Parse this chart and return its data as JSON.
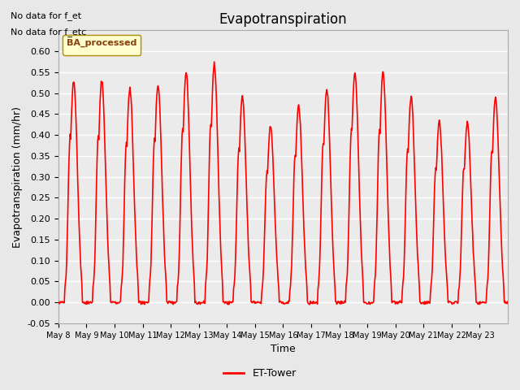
{
  "title": "Evapotranspiration",
  "ylabel": "Evapotranspiration (mm/hr)",
  "xlabel": "Time",
  "ylim": [
    -0.05,
    0.65
  ],
  "yticks": [
    -0.05,
    0.0,
    0.05,
    0.1,
    0.15,
    0.2,
    0.25,
    0.3,
    0.35,
    0.4,
    0.45,
    0.5,
    0.55,
    0.6
  ],
  "line_color": "red",
  "line_width": 1.2,
  "bg_color": "#e8e8e8",
  "plot_bg_color": "#ebebeb",
  "annotation_text1": "No data for f_et",
  "annotation_text2": "No data for f_etc",
  "legend_label": "ET-Tower",
  "legend_box_color": "#ffffcc",
  "legend_box_label": "BA_processed",
  "x_tick_labels": [
    "May 8",
    "May 9",
    "May 10",
    "May 11",
    "May 12",
    "May 13",
    "May 14",
    "May 15",
    "May 16",
    "May 17",
    "May 18",
    "May 19",
    "May 20",
    "May 21",
    "May 22",
    "May 23"
  ],
  "n_days": 16,
  "start_day": 8,
  "day_peaks": [
    0.53,
    0.53,
    0.51,
    0.52,
    0.55,
    0.57,
    0.49,
    0.42,
    0.47,
    0.51,
    0.55,
    0.55,
    0.49,
    0.43,
    0.43,
    0.49
  ]
}
